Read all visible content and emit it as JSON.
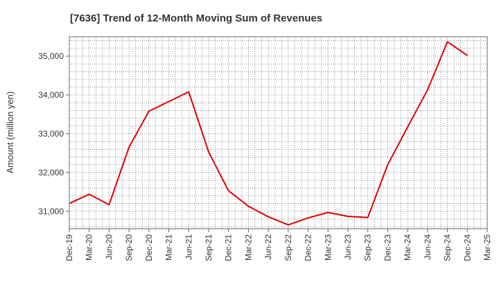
{
  "chart_data": {
    "type": "line",
    "title": "[7636]  Trend of 12-Month Moving Sum of Revenues",
    "ylabel": "Amount (million yen)",
    "xlabel": "",
    "x_tick_labels": [
      "Dec-19",
      "Mar-20",
      "Jun-20",
      "Sep-20",
      "Dec-20",
      "Mar-21",
      "Jun-21",
      "Sep-21",
      "Dec-21",
      "Mar-22",
      "Jun-22",
      "Sep-22",
      "Dec-22",
      "Mar-23",
      "Jun-23",
      "Sep-23",
      "Dec-23",
      "Mar-24",
      "Jun-24",
      "Sep-24",
      "Dec-24",
      "Mar-25"
    ],
    "y_ticks": [
      31000,
      32000,
      33000,
      34000,
      35000
    ],
    "y_tick_labels": [
      "31,000",
      "32,000",
      "33,000",
      "34,000",
      "35,000"
    ],
    "ylim": [
      30550,
      35500
    ],
    "grid": true,
    "series": [
      {
        "color": "#e00000",
        "values": [
          31200,
          31440,
          31170,
          32650,
          33580,
          33830,
          34080,
          32530,
          31530,
          31130,
          30860,
          30650,
          30830,
          30970,
          30870,
          30840,
          32200,
          33170,
          34130,
          35370,
          35020
        ]
      }
    ]
  }
}
